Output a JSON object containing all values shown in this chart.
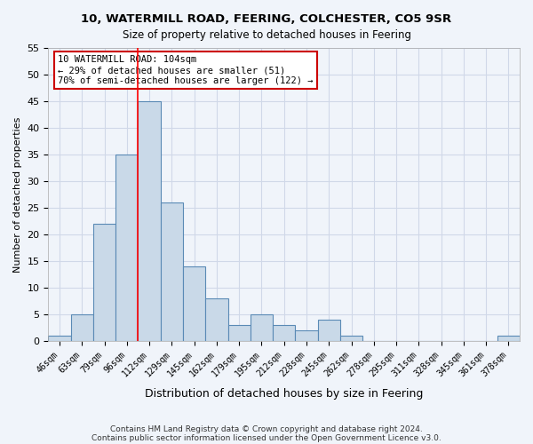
{
  "title1": "10, WATERMILL ROAD, FEERING, COLCHESTER, CO5 9SR",
  "title2": "Size of property relative to detached houses in Feering",
  "xlabel": "Distribution of detached houses by size in Feering",
  "ylabel": "Number of detached properties",
  "bins": [
    "46sqm",
    "63sqm",
    "79sqm",
    "96sqm",
    "112sqm",
    "129sqm",
    "145sqm",
    "162sqm",
    "179sqm",
    "195sqm",
    "212sqm",
    "228sqm",
    "245sqm",
    "262sqm",
    "278sqm",
    "295sqm",
    "311sqm",
    "328sqm",
    "345sqm",
    "361sqm",
    "378sqm"
  ],
  "values": [
    1,
    5,
    22,
    35,
    45,
    26,
    14,
    8,
    3,
    5,
    3,
    2,
    4,
    1,
    0,
    0,
    0,
    0,
    0,
    0,
    1
  ],
  "bar_color": "#c9d9e8",
  "bar_edge_color": "#5a8ab5",
  "grid_color": "#d0d8e8",
  "red_line_bin_index": 3.5,
  "annotation_text": "10 WATERMILL ROAD: 104sqm\n← 29% of detached houses are smaller (51)\n70% of semi-detached houses are larger (122) →",
  "annotation_box_color": "#ffffff",
  "annotation_box_edge_color": "#cc0000",
  "footnote1": "Contains HM Land Registry data © Crown copyright and database right 2024.",
  "footnote2": "Contains public sector information licensed under the Open Government Licence v3.0.",
  "ylim": [
    0,
    55
  ],
  "background_color": "#f0f4fa"
}
